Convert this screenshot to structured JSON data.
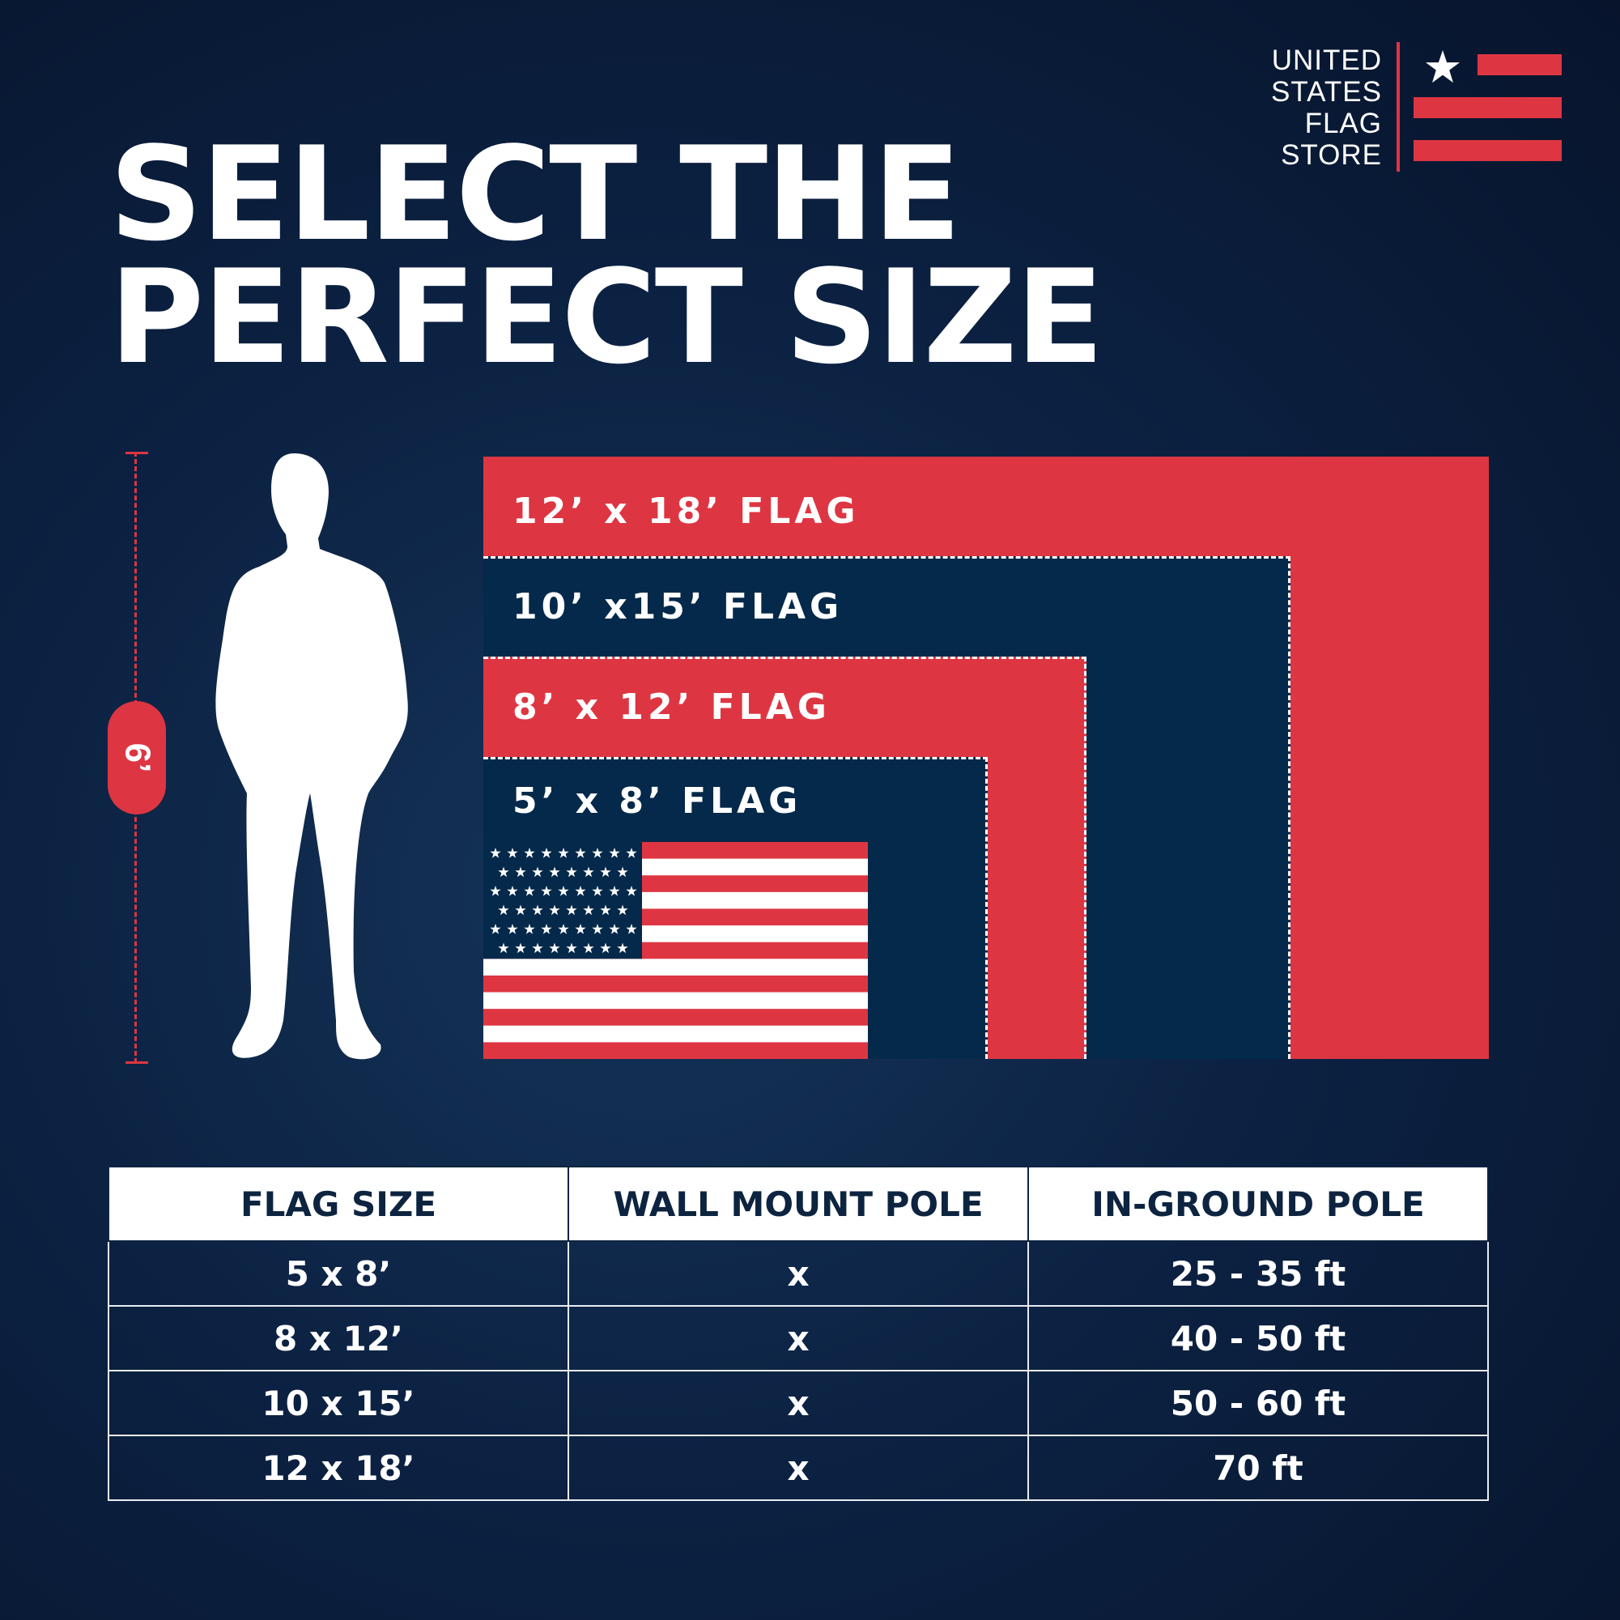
{
  "title": {
    "line1": "SELECT THE",
    "line2": "PERFECT SIZE"
  },
  "logo": {
    "lines": [
      "UNITED",
      "STATES",
      "FLAG",
      "STORE"
    ],
    "icon": "star-stripes-logo"
  },
  "colors": {
    "red": "#dd3642",
    "navy": "#04294a",
    "background": "#0a1d3a",
    "white": "#ffffff"
  },
  "height_marker": {
    "label": "6’"
  },
  "flags": [
    {
      "label": "12’ x 18’ FLAG"
    },
    {
      "label": "10’ x15’ FLAG"
    },
    {
      "label": "8’ x 12’ FLAG"
    },
    {
      "label": "5’ x 8’ FLAG"
    }
  ],
  "table": {
    "headers": [
      "FLAG SIZE",
      "WALL MOUNT POLE",
      "IN-GROUND POLE"
    ],
    "rows": [
      [
        "5 x 8’",
        "x",
        "25 - 35 ft"
      ],
      [
        "8 x 12’",
        "x",
        "40 - 50 ft"
      ],
      [
        "10 x 15’",
        "x",
        "50 - 60 ft"
      ],
      [
        "12 x 18’",
        "x",
        "70 ft"
      ]
    ]
  }
}
